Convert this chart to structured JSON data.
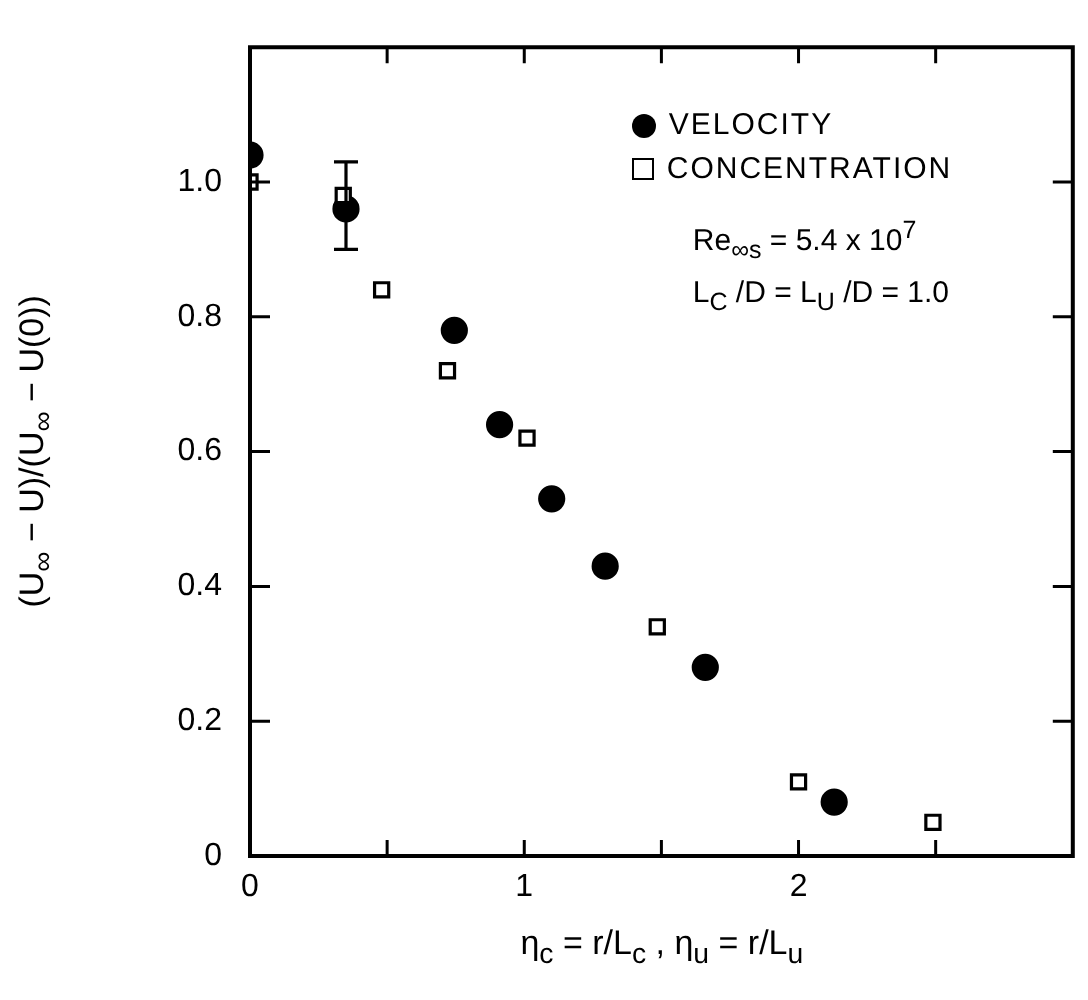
{
  "chart_data": {
    "type": "scatter",
    "xlabel": "η$_{c}$ = r/L$_{c}$ ,  η$_{u}$ = r/L$_{u}$",
    "ylabel": "(U$_{∞}$ − U)/(U$_{∞}$ − U(0))",
    "xlim": [
      0,
      3
    ],
    "xticks": [
      0,
      {
        "value": 0.5,
        "label": null
      },
      1,
      {
        "value": 1.5,
        "label": null
      },
      2,
      {
        "value": 2.5,
        "label": null
      }
    ],
    "ylim": [
      0,
      1.2
    ],
    "yticks": [
      0,
      0.2,
      0.4,
      0.6,
      0.8,
      {
        "value": 1,
        "label": "1.0"
      }
    ],
    "grid": false,
    "legend": "top right",
    "series": [
      {
        "name": "VELOCITY",
        "color": "#000000",
        "marker": "circle",
        "x": [
          0,
          0.35,
          0.745,
          0.91,
          1.1,
          1.295,
          1.66,
          2.13
        ],
        "values": [
          1.04,
          0.96,
          0.78,
          0.64,
          0.53,
          0.43,
          0.28,
          0.08
        ],
        "errors": [
          null,
          [
            0.9,
            1.03
          ],
          null,
          null,
          null,
          null,
          null,
          null
        ]
      },
      {
        "name": "CONCENTRATION",
        "color": "#000000",
        "marker": "square",
        "x": [
          0,
          0.34,
          0.48,
          0.72,
          1.01,
          1.485,
          2.0,
          2.49
        ],
        "values": [
          1.0,
          0.98,
          0.84,
          0.72,
          0.62,
          0.34,
          0.11,
          0.05
        ]
      }
    ],
    "annotations": [
      "Re$_{∞s}$ = 5.4 x 10$^{7}$",
      "L$_{C}$ /D = L$_{U}$ /D = 1.0"
    ]
  }
}
